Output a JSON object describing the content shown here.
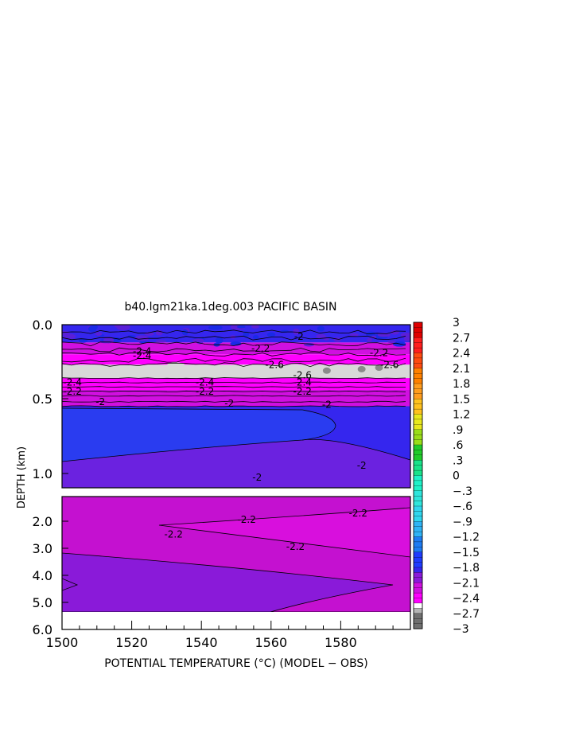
{
  "chart_data": {
    "type": "heatmap",
    "title": "b40.lgm21ka.1deg.003 PACIFIC BASIN",
    "xlabel": "POTENTIAL TEMPERATURE (°C) (MODEL − OBS)",
    "ylabel": "DEPTH (km)",
    "x_ticks": [
      "1500",
      "1520",
      "1540",
      "1560",
      "1580"
    ],
    "x_range": [
      1500,
      1600
    ],
    "upper_panel": {
      "y_range": [
        0.0,
        1.1
      ],
      "y_ticks": [
        "0.0",
        "0.5",
        "1.0"
      ],
      "regions": [
        {
          "depth_top": 0.0,
          "depth_bottom": 0.12,
          "value": -1.9
        },
        {
          "depth_top": 0.12,
          "depth_bottom": 0.2,
          "value": -2.2
        },
        {
          "depth_top": 0.2,
          "depth_bottom": 0.27,
          "value": -2.4
        },
        {
          "depth_top": 0.27,
          "depth_bottom": 0.36,
          "value": -2.6
        },
        {
          "depth_top": 0.36,
          "depth_bottom": 0.44,
          "value": -2.4
        },
        {
          "depth_top": 0.44,
          "depth_bottom": 0.55,
          "value": -2.2
        },
        {
          "depth_top": 0.55,
          "depth_bottom": 0.95,
          "value": -1.9
        },
        {
          "depth_top": 0.95,
          "depth_bottom": 1.1,
          "value": -2.0
        }
      ],
      "contour_labels": [
        {
          "text": "-2.4",
          "x": 1503,
          "depth": 0.39
        },
        {
          "text": "-2.2",
          "x": 1503,
          "depth": 0.45
        },
        {
          "text": "-2",
          "x": 1511,
          "depth": 0.52
        },
        {
          "text": "-2.4",
          "x": 1541,
          "depth": 0.39
        },
        {
          "text": "-2.2",
          "x": 1541,
          "depth": 0.45
        },
        {
          "text": "-2",
          "x": 1548,
          "depth": 0.53
        },
        {
          "text": "-2.6",
          "x": 1569,
          "depth": 0.34
        },
        {
          "text": "-2.4",
          "x": 1569,
          "depth": 0.39
        },
        {
          "text": "-2.2",
          "x": 1569,
          "depth": 0.45
        },
        {
          "text": "-2",
          "x": 1576,
          "depth": 0.54
        },
        {
          "text": "-2",
          "x": 1556,
          "depth": 1.03
        },
        {
          "text": "-2",
          "x": 1586,
          "depth": 0.95
        },
        {
          "text": "-2.4",
          "x": 1523,
          "depth": 0.18
        },
        {
          "text": "-2.4",
          "x": 1523,
          "depth": 0.21
        },
        {
          "text": "-2.2",
          "x": 1557,
          "depth": 0.16
        },
        {
          "text": "-2.2",
          "x": 1591,
          "depth": 0.19
        },
        {
          "text": "-2",
          "x": 1568,
          "depth": 0.08
        },
        {
          "text": "-2.6",
          "x": 1561,
          "depth": 0.27
        },
        {
          "text": "-2.6",
          "x": 1594,
          "depth": 0.27
        }
      ]
    },
    "lower_panel": {
      "y_range": [
        1.1,
        6.0
      ],
      "y_ticks": [
        "2.0",
        "3.0",
        "4.0",
        "5.0",
        "6.0"
      ],
      "regions": [
        {
          "depth_top": 1.1,
          "depth_bottom": 3.0,
          "value": -2.2
        },
        {
          "depth_top": 2.0,
          "depth_bottom": 3.2,
          "value": -2.3
        },
        {
          "depth_top": 3.0,
          "depth_bottom": 5.3,
          "value": -2.1
        }
      ],
      "contour_labels": [
        {
          "text": "-2.2",
          "x": 1553,
          "depth": 1.95
        },
        {
          "text": "-2.2",
          "x": 1585,
          "depth": 1.72
        },
        {
          "text": "-2.2",
          "x": 1532,
          "depth": 2.5
        },
        {
          "text": "-2.2",
          "x": 1567,
          "depth": 2.95
        }
      ]
    },
    "colorbar": {
      "min": -3,
      "max": 3,
      "labels": [
        "3",
        "2.7",
        "2.4",
        "2.1",
        "1.8",
        "1.5",
        "1.2",
        ".9",
        ".6",
        ".3",
        "0",
        "−.3",
        "−.6",
        "−.9",
        "−1.2",
        "−1.5",
        "−1.8",
        "−2.1",
        "−2.4",
        "−2.7",
        "−3"
      ]
    }
  }
}
